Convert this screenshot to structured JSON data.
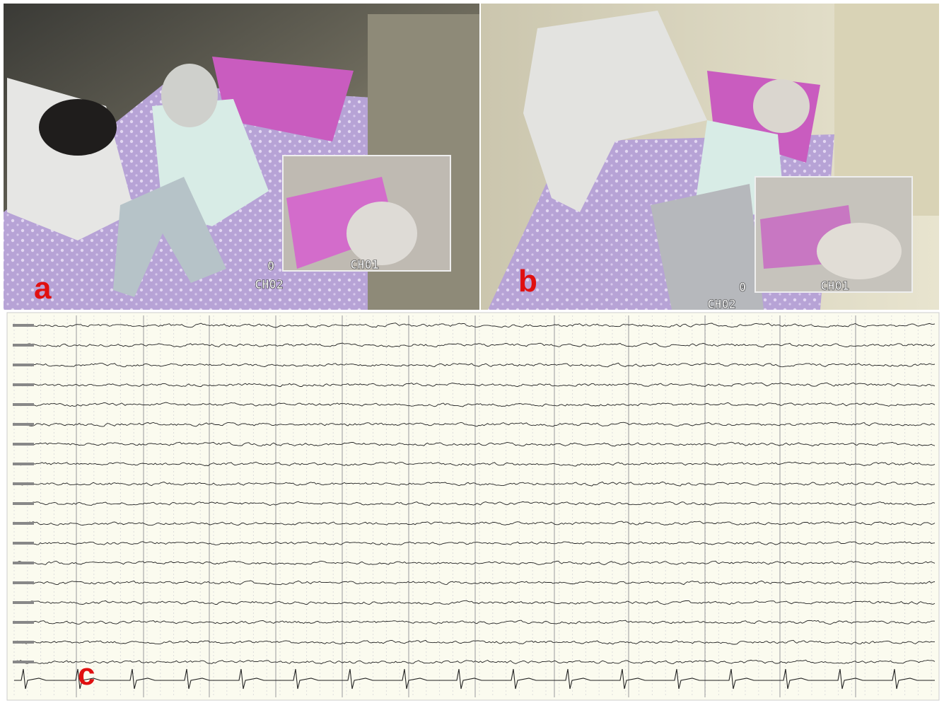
{
  "panels": [
    {
      "label": "a",
      "camera": "CH02",
      "inset_camera": "CH01",
      "digit": "0"
    },
    {
      "label": "b",
      "camera": "CH02",
      "inset_camera": "CH01",
      "digit": "0"
    },
    {
      "label": "c"
    }
  ]
}
